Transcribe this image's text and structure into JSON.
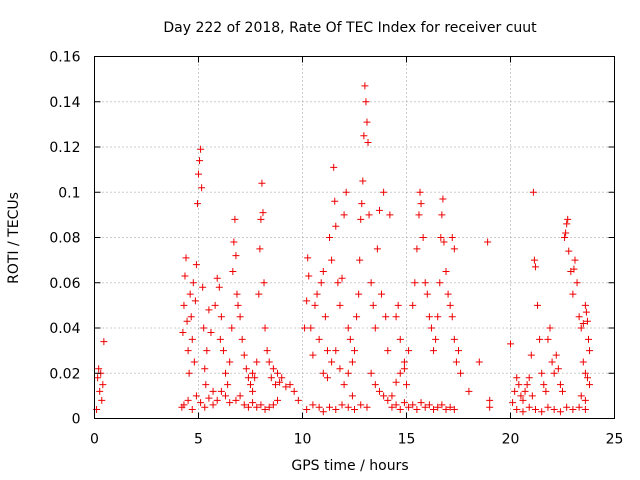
{
  "chart_data": {
    "type": "scatter",
    "title": "Day 222 of 2018, Rate Of TEC Index for receiver cuut",
    "xlabel": "GPS time / hours",
    "ylabel": "ROTI / TECUs",
    "xlim": [
      0,
      25
    ],
    "ylim": [
      0,
      0.16
    ],
    "x_ticks": [
      0,
      5,
      10,
      15,
      20,
      25
    ],
    "y_ticks": [
      0,
      0.02,
      0.04,
      0.06,
      0.08,
      0.1,
      0.12,
      0.14,
      0.16
    ],
    "x_tick_labels": [
      "0",
      "5",
      "10",
      "15",
      "20",
      "25"
    ],
    "y_tick_labels": [
      "0",
      "0.02",
      "0.04",
      "0.06",
      "0.08",
      "0.1",
      "0.12",
      "0.14",
      "0.16"
    ],
    "grid": true,
    "marker": "plus",
    "marker_color": "#ee0000",
    "series": [
      {
        "points": [
          [
            0.1,
            0.004
          ],
          [
            0.15,
            0.018
          ],
          [
            0.2,
            0.022
          ],
          [
            0.25,
            0.012
          ],
          [
            0.3,
            0.02
          ],
          [
            0.35,
            0.008
          ],
          [
            0.4,
            0.015
          ],
          [
            0.45,
            0.034
          ],
          [
            4.2,
            0.005
          ],
          [
            4.25,
            0.038
          ],
          [
            4.3,
            0.05
          ],
          [
            4.35,
            0.063
          ],
          [
            4.4,
            0.071
          ],
          [
            4.45,
            0.043
          ],
          [
            4.5,
            0.03
          ],
          [
            4.55,
            0.02
          ],
          [
            4.6,
            0.055
          ],
          [
            4.65,
            0.045
          ],
          [
            4.7,
            0.035
          ],
          [
            4.75,
            0.06
          ],
          [
            4.8,
            0.025
          ],
          [
            4.85,
            0.052
          ],
          [
            4.9,
            0.068
          ],
          [
            4.95,
            0.095
          ],
          [
            5.0,
            0.108
          ],
          [
            5.05,
            0.114
          ],
          [
            5.1,
            0.119
          ],
          [
            5.15,
            0.102
          ],
          [
            5.2,
            0.058
          ],
          [
            5.25,
            0.04
          ],
          [
            5.3,
            0.022
          ],
          [
            5.35,
            0.015
          ],
          [
            5.4,
            0.03
          ],
          [
            5.5,
            0.048
          ],
          [
            5.6,
            0.038
          ],
          [
            5.7,
            0.012
          ],
          [
            4.3,
            0.006
          ],
          [
            4.5,
            0.008
          ],
          [
            4.7,
            0.004
          ],
          [
            4.9,
            0.01
          ],
          [
            5.1,
            0.007
          ],
          [
            5.3,
            0.005
          ],
          [
            5.5,
            0.009
          ],
          [
            5.7,
            0.006
          ],
          [
            5.9,
            0.008
          ],
          [
            6.1,
            0.012
          ],
          [
            6.3,
            0.01
          ],
          [
            6.5,
            0.007
          ],
          [
            5.8,
            0.05
          ],
          [
            5.9,
            0.062
          ],
          [
            6.0,
            0.058
          ],
          [
            6.05,
            0.035
          ],
          [
            6.1,
            0.045
          ],
          [
            6.2,
            0.03
          ],
          [
            6.3,
            0.02
          ],
          [
            6.4,
            0.015
          ],
          [
            6.5,
            0.025
          ],
          [
            6.6,
            0.04
          ],
          [
            6.65,
            0.065
          ],
          [
            6.7,
            0.078
          ],
          [
            6.75,
            0.088
          ],
          [
            6.8,
            0.072
          ],
          [
            6.85,
            0.055
          ],
          [
            6.9,
            0.05
          ],
          [
            7.0,
            0.045
          ],
          [
            7.1,
            0.035
          ],
          [
            7.2,
            0.028
          ],
          [
            7.3,
            0.022
          ],
          [
            7.4,
            0.018
          ],
          [
            7.5,
            0.015
          ],
          [
            7.6,
            0.012
          ],
          [
            6.8,
            0.008
          ],
          [
            7.0,
            0.01
          ],
          [
            7.2,
            0.006
          ],
          [
            7.4,
            0.005
          ],
          [
            7.6,
            0.007
          ],
          [
            7.8,
            0.005
          ],
          [
            8.0,
            0.006
          ],
          [
            8.2,
            0.004
          ],
          [
            8.4,
            0.005
          ],
          [
            8.6,
            0.006
          ],
          [
            8.8,
            0.008
          ],
          [
            7.6,
            0.02
          ],
          [
            7.7,
            0.018
          ],
          [
            7.8,
            0.025
          ],
          [
            7.9,
            0.055
          ],
          [
            7.95,
            0.075
          ],
          [
            8.0,
            0.088
          ],
          [
            8.05,
            0.104
          ],
          [
            8.1,
            0.091
          ],
          [
            8.15,
            0.06
          ],
          [
            8.2,
            0.04
          ],
          [
            8.3,
            0.03
          ],
          [
            8.4,
            0.025
          ],
          [
            8.5,
            0.018
          ],
          [
            8.6,
            0.022
          ],
          [
            8.7,
            0.015
          ],
          [
            8.8,
            0.02
          ],
          [
            8.9,
            0.016
          ],
          [
            9.0,
            0.018
          ],
          [
            9.2,
            0.014
          ],
          [
            9.4,
            0.015
          ],
          [
            9.6,
            0.012
          ],
          [
            9.8,
            0.008
          ],
          [
            10.1,
            0.04
          ],
          [
            10.2,
            0.052
          ],
          [
            10.25,
            0.071
          ],
          [
            10.3,
            0.063
          ],
          [
            10.4,
            0.04
          ],
          [
            10.5,
            0.028
          ],
          [
            10.6,
            0.05
          ],
          [
            10.7,
            0.055
          ],
          [
            10.8,
            0.035
          ],
          [
            10.9,
            0.06
          ],
          [
            11.0,
            0.065
          ],
          [
            11.1,
            0.045
          ],
          [
            11.2,
            0.03
          ],
          [
            11.3,
            0.08
          ],
          [
            11.4,
            0.07
          ],
          [
            11.5,
            0.111
          ],
          [
            11.55,
            0.096
          ],
          [
            11.6,
            0.085
          ],
          [
            11.7,
            0.06
          ],
          [
            11.8,
            0.05
          ],
          [
            11.9,
            0.062
          ],
          [
            12.0,
            0.09
          ],
          [
            12.1,
            0.1
          ],
          [
            12.2,
            0.04
          ],
          [
            12.3,
            0.035
          ],
          [
            12.4,
            0.025
          ],
          [
            12.5,
            0.03
          ],
          [
            10.2,
            0.004
          ],
          [
            10.5,
            0.006
          ],
          [
            10.8,
            0.005
          ],
          [
            11.0,
            0.003
          ],
          [
            11.3,
            0.005
          ],
          [
            11.6,
            0.004
          ],
          [
            11.9,
            0.006
          ],
          [
            12.2,
            0.005
          ],
          [
            12.5,
            0.004
          ],
          [
            12.8,
            0.006
          ],
          [
            13.1,
            0.005
          ],
          [
            11.0,
            0.02
          ],
          [
            11.2,
            0.018
          ],
          [
            11.4,
            0.025
          ],
          [
            11.6,
            0.03
          ],
          [
            11.8,
            0.022
          ],
          [
            12.0,
            0.015
          ],
          [
            12.2,
            0.02
          ],
          [
            12.4,
            0.01
          ],
          [
            12.6,
            0.045
          ],
          [
            12.7,
            0.055
          ],
          [
            12.75,
            0.07
          ],
          [
            12.8,
            0.088
          ],
          [
            12.85,
            0.095
          ],
          [
            12.9,
            0.105
          ],
          [
            12.95,
            0.125
          ],
          [
            13.0,
            0.147
          ],
          [
            13.05,
            0.14
          ],
          [
            13.1,
            0.131
          ],
          [
            13.15,
            0.122
          ],
          [
            13.2,
            0.09
          ],
          [
            13.3,
            0.06
          ],
          [
            13.4,
            0.05
          ],
          [
            13.5,
            0.04
          ],
          [
            13.6,
            0.075
          ],
          [
            13.7,
            0.092
          ],
          [
            13.8,
            0.055
          ],
          [
            13.9,
            0.1
          ],
          [
            14.0,
            0.045
          ],
          [
            14.1,
            0.03
          ],
          [
            14.2,
            0.09
          ],
          [
            13.3,
            0.02
          ],
          [
            13.5,
            0.015
          ],
          [
            13.7,
            0.012
          ],
          [
            13.9,
            0.01
          ],
          [
            14.1,
            0.008
          ],
          [
            14.3,
            0.01
          ],
          [
            14.5,
            0.016
          ],
          [
            14.7,
            0.02
          ],
          [
            14.9,
            0.022
          ],
          [
            15.0,
            0.015
          ],
          [
            14.3,
            0.005
          ],
          [
            14.5,
            0.006
          ],
          [
            14.7,
            0.004
          ],
          [
            14.9,
            0.007
          ],
          [
            15.1,
            0.005
          ],
          [
            15.3,
            0.006
          ],
          [
            15.5,
            0.004
          ],
          [
            15.7,
            0.007
          ],
          [
            15.9,
            0.005
          ],
          [
            16.1,
            0.006
          ],
          [
            16.3,
            0.004
          ],
          [
            16.5,
            0.005
          ],
          [
            16.7,
            0.006
          ],
          [
            16.9,
            0.004
          ],
          [
            17.1,
            0.005
          ],
          [
            17.3,
            0.004
          ],
          [
            14.5,
            0.045
          ],
          [
            14.6,
            0.05
          ],
          [
            14.7,
            0.035
          ],
          [
            14.9,
            0.025
          ],
          [
            15.1,
            0.03
          ],
          [
            15.3,
            0.05
          ],
          [
            15.4,
            0.06
          ],
          [
            15.5,
            0.075
          ],
          [
            15.6,
            0.09
          ],
          [
            15.65,
            0.1
          ],
          [
            15.7,
            0.095
          ],
          [
            15.8,
            0.08
          ],
          [
            15.9,
            0.06
          ],
          [
            16.0,
            0.055
          ],
          [
            16.1,
            0.045
          ],
          [
            16.2,
            0.04
          ],
          [
            16.3,
            0.03
          ],
          [
            16.4,
            0.035
          ],
          [
            16.5,
            0.045
          ],
          [
            16.6,
            0.06
          ],
          [
            16.65,
            0.08
          ],
          [
            16.7,
            0.09
          ],
          [
            16.75,
            0.097
          ],
          [
            16.8,
            0.078
          ],
          [
            16.9,
            0.065
          ],
          [
            17.0,
            0.055
          ],
          [
            17.1,
            0.05
          ],
          [
            17.2,
            0.045
          ],
          [
            17.3,
            0.035
          ],
          [
            17.4,
            0.025
          ],
          [
            17.5,
            0.03
          ],
          [
            17.6,
            0.02
          ],
          [
            17.2,
            0.08
          ],
          [
            17.3,
            0.075
          ],
          [
            18.0,
            0.012
          ],
          [
            18.5,
            0.025
          ],
          [
            18.9,
            0.078
          ],
          [
            19.0,
            0.008
          ],
          [
            20.1,
            0.007
          ],
          [
            20.2,
            0.012
          ],
          [
            20.3,
            0.018
          ],
          [
            20.4,
            0.015
          ],
          [
            20.5,
            0.01
          ],
          [
            20.6,
            0.008
          ],
          [
            20.7,
            0.012
          ],
          [
            20.8,
            0.015
          ],
          [
            20.9,
            0.018
          ],
          [
            21.0,
            0.028
          ],
          [
            21.05,
            0.01
          ],
          [
            21.1,
            0.1
          ],
          [
            21.15,
            0.07
          ],
          [
            21.2,
            0.067
          ],
          [
            21.3,
            0.05
          ],
          [
            21.4,
            0.035
          ],
          [
            21.5,
            0.02
          ],
          [
            21.6,
            0.015
          ],
          [
            21.7,
            0.012
          ],
          [
            21.8,
            0.035
          ],
          [
            21.9,
            0.04
          ],
          [
            22.0,
            0.025
          ],
          [
            22.1,
            0.02
          ],
          [
            22.2,
            0.028
          ],
          [
            22.3,
            0.022
          ],
          [
            22.4,
            0.015
          ],
          [
            22.5,
            0.012
          ],
          [
            20.3,
            0.004
          ],
          [
            20.6,
            0.003
          ],
          [
            20.9,
            0.005
          ],
          [
            21.2,
            0.004
          ],
          [
            21.5,
            0.003
          ],
          [
            21.8,
            0.005
          ],
          [
            22.1,
            0.004
          ],
          [
            22.4,
            0.003
          ],
          [
            22.7,
            0.005
          ],
          [
            23.0,
            0.004
          ],
          [
            23.3,
            0.005
          ],
          [
            23.6,
            0.004
          ],
          [
            22.6,
            0.08
          ],
          [
            22.65,
            0.082
          ],
          [
            22.7,
            0.086
          ],
          [
            22.75,
            0.088
          ],
          [
            22.8,
            0.074
          ],
          [
            22.9,
            0.065
          ],
          [
            23.0,
            0.055
          ],
          [
            23.05,
            0.066
          ],
          [
            23.1,
            0.07
          ],
          [
            23.2,
            0.06
          ],
          [
            23.3,
            0.045
          ],
          [
            23.4,
            0.04
          ],
          [
            23.5,
            0.042
          ],
          [
            23.6,
            0.05
          ],
          [
            23.65,
            0.047
          ],
          [
            23.7,
            0.043
          ],
          [
            23.75,
            0.035
          ],
          [
            23.8,
            0.03
          ],
          [
            23.5,
            0.025
          ],
          [
            23.6,
            0.02
          ],
          [
            23.7,
            0.018
          ],
          [
            23.8,
            0.015
          ],
          [
            23.4,
            0.01
          ],
          [
            23.6,
            0.008
          ],
          [
            19.0,
            0.005
          ],
          [
            20.0,
            0.033
          ]
        ]
      }
    ]
  }
}
